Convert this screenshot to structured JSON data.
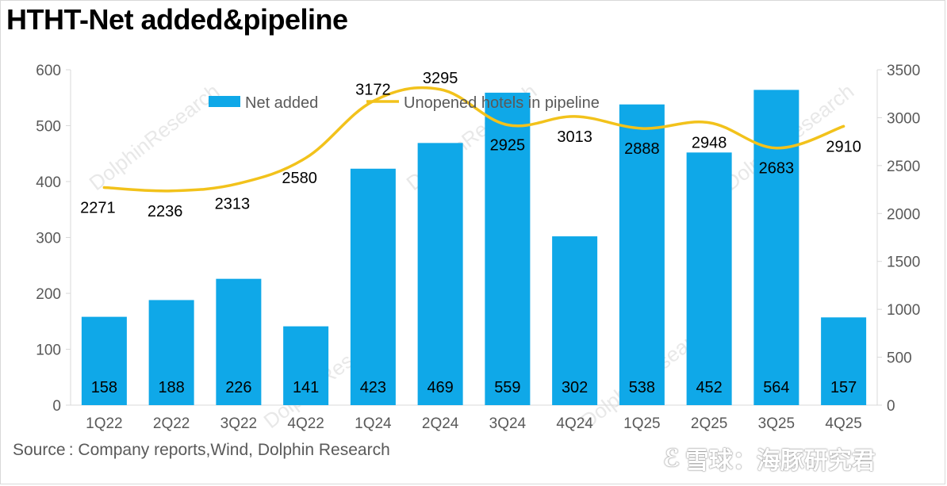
{
  "title": "HTHT-Net added&pipeline",
  "source": "Source : Company reports,Wind, Dolphin Research",
  "watermark": {
    "site": "雪球：海豚研究君",
    "diagonal": "DolphinResearch"
  },
  "colors": {
    "bar": "#0fa8e8",
    "line": "#f2c21b",
    "axis_text": "#595959",
    "axis_line": "#d9d9d9"
  },
  "chart_data": {
    "type": "bar+line",
    "categories": [
      "1Q22",
      "2Q22",
      "3Q22",
      "4Q22",
      "1Q24",
      "2Q24",
      "3Q24",
      "4Q24",
      "1Q25",
      "2Q25",
      "3Q25",
      "4Q25"
    ],
    "series": [
      {
        "name": "Net added",
        "type": "bar",
        "axis": "left",
        "values": [
          158,
          188,
          226,
          141,
          423,
          469,
          559,
          302,
          538,
          452,
          564,
          157
        ]
      },
      {
        "name": "Unopened hotels in pipeline",
        "type": "line",
        "axis": "right",
        "values": [
          2271,
          2236,
          2313,
          2580,
          3172,
          3295,
          2925,
          3013,
          2888,
          2948,
          2683,
          2910
        ]
      }
    ],
    "y_left": {
      "lim": [
        0,
        600
      ],
      "ticks": [
        "0",
        "100",
        "200",
        "300",
        "400",
        "500",
        "600"
      ]
    },
    "y_right": {
      "lim": [
        0,
        3500
      ],
      "ticks": [
        "0",
        "500",
        "1000",
        "1500",
        "2000",
        "2500",
        "3000",
        "3500"
      ]
    },
    "legend_position": "top",
    "grid": false
  }
}
